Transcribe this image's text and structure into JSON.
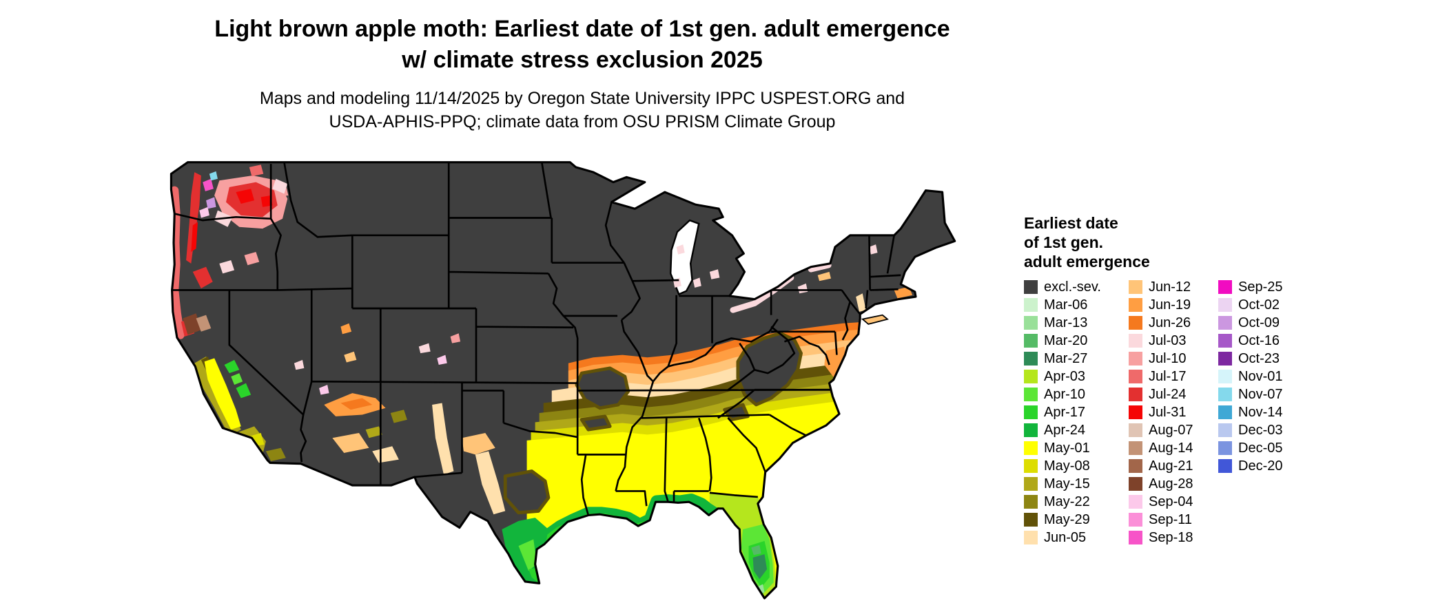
{
  "header": {
    "title_line1": "Light brown apple moth: Earliest date of 1st gen. adult emergence",
    "title_line2": "w/ climate stress exclusion 2025",
    "subtitle_line1": "Maps and modeling 11/14/2025 by Oregon State University IPPC USPEST.ORG and",
    "subtitle_line2": "USDA-APHIS-PPQ; climate data from OSU PRISM Climate Group"
  },
  "legend": {
    "heading_lines": [
      "Earliest date",
      "of 1st gen.",
      "adult emergence"
    ],
    "columns": [
      {
        "items": [
          {
            "key": "excl",
            "label": "excl.-sev."
          },
          {
            "key": "mar06",
            "label": "Mar-06"
          },
          {
            "key": "mar13",
            "label": "Mar-13"
          },
          {
            "key": "mar20",
            "label": "Mar-20"
          },
          {
            "key": "mar27",
            "label": "Mar-27"
          },
          {
            "key": "apr03",
            "label": "Apr-03"
          },
          {
            "key": "apr10",
            "label": "Apr-10"
          },
          {
            "key": "apr17",
            "label": "Apr-17"
          },
          {
            "key": "apr24",
            "label": "Apr-24"
          },
          {
            "key": "may01",
            "label": "May-01"
          },
          {
            "key": "may08",
            "label": "May-08"
          },
          {
            "key": "may15",
            "label": "May-15"
          },
          {
            "key": "may22",
            "label": "May-22"
          },
          {
            "key": "may29",
            "label": "May-29"
          },
          {
            "key": "jun05",
            "label": "Jun-05"
          }
        ]
      },
      {
        "items": [
          {
            "key": "jun12",
            "label": "Jun-12"
          },
          {
            "key": "jun19",
            "label": "Jun-19"
          },
          {
            "key": "jun26",
            "label": "Jun-26"
          },
          {
            "key": "jul03",
            "label": "Jul-03"
          },
          {
            "key": "jul10",
            "label": "Jul-10"
          },
          {
            "key": "jul17",
            "label": "Jul-17"
          },
          {
            "key": "jul24",
            "label": "Jul-24"
          },
          {
            "key": "jul31",
            "label": "Jul-31"
          },
          {
            "key": "aug07",
            "label": "Aug-07"
          },
          {
            "key": "aug14",
            "label": "Aug-14"
          },
          {
            "key": "aug21",
            "label": "Aug-21"
          },
          {
            "key": "aug28",
            "label": "Aug-28"
          },
          {
            "key": "sep04",
            "label": "Sep-04"
          },
          {
            "key": "sep11",
            "label": "Sep-11"
          },
          {
            "key": "sep18",
            "label": "Sep-18"
          }
        ]
      },
      {
        "items": [
          {
            "key": "sep25",
            "label": "Sep-25"
          },
          {
            "key": "oct02",
            "label": "Oct-02"
          },
          {
            "key": "oct09",
            "label": "Oct-09"
          },
          {
            "key": "oct16",
            "label": "Oct-16"
          },
          {
            "key": "oct23",
            "label": "Oct-23"
          },
          {
            "key": "nov01",
            "label": "Nov-01"
          },
          {
            "key": "nov07",
            "label": "Nov-07"
          },
          {
            "key": "nov14",
            "label": "Nov-14"
          },
          {
            "key": "dec03",
            "label": "Dec-03"
          },
          {
            "key": "dec05",
            "label": "Dec-05"
          },
          {
            "key": "dec20",
            "label": "Dec-20"
          }
        ]
      }
    ]
  },
  "palette": {
    "excl": "#3f3f3f",
    "mar06": "#ccf2cc",
    "mar13": "#99e099",
    "mar20": "#55bb66",
    "mar27": "#2e8b57",
    "apr03": "#b5e61d",
    "apr10": "#5ce636",
    "apr17": "#2ad42a",
    "apr24": "#12b53c",
    "may01": "#ffff00",
    "may08": "#dddd00",
    "may15": "#b0a818",
    "may22": "#8d8512",
    "may29": "#615208",
    "jun05": "#ffe0ad",
    "jun12": "#ffc478",
    "jun19": "#ff9e42",
    "jun26": "#f5791e",
    "jul03": "#fbd9dd",
    "jul10": "#f7a0a0",
    "jul17": "#ef6a6a",
    "jul24": "#e33030",
    "jul31": "#f50505",
    "aug07": "#e0c4b4",
    "aug14": "#c39376",
    "aug21": "#a2664a",
    "aug28": "#7e422a",
    "sep04": "#fcc9ea",
    "sep11": "#fb8fd8",
    "sep18": "#f754c8",
    "sep25": "#f10cc1",
    "oct02": "#ecd4f2",
    "oct09": "#cb97e0",
    "oct16": "#a658c8",
    "oct23": "#7d28a0",
    "nov01": "#d5f4fa",
    "nov07": "#84d9ec",
    "nov14": "#3fa8d5",
    "dec03": "#b9c8ef",
    "dec05": "#7b94e0",
    "dec20": "#4157d8",
    "border": "#000000",
    "water": "#ffffff"
  }
}
